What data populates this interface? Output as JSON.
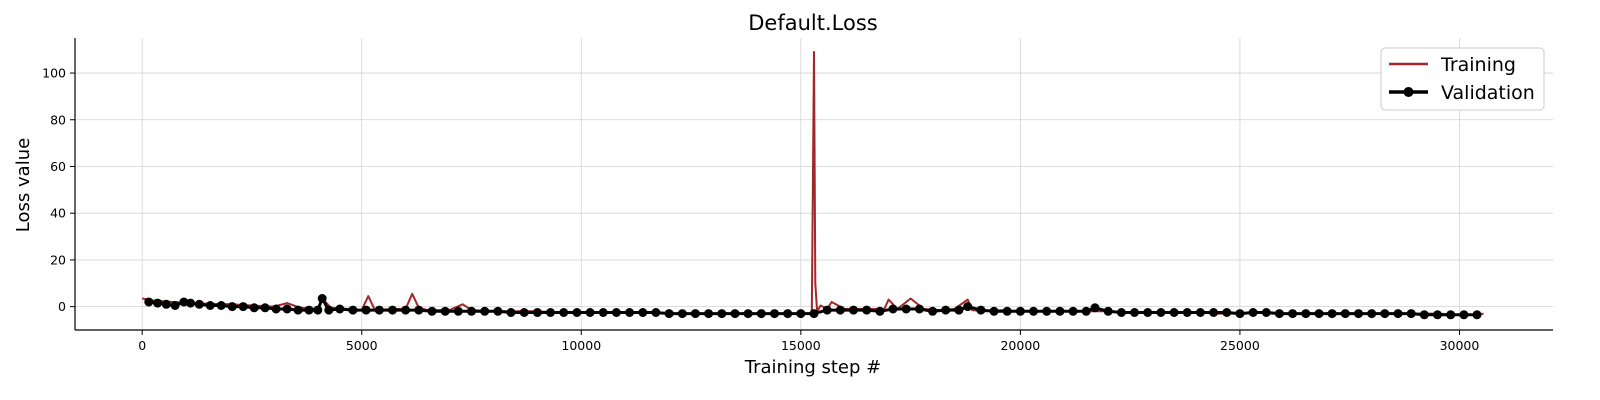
{
  "chart_data": {
    "type": "line",
    "title": "Default.Loss",
    "xlabel": "Training step #",
    "ylabel": "Loss value",
    "xlim": [
      -1530,
      32130
    ],
    "ylim": [
      -10,
      115
    ],
    "xticks": [
      0,
      5000,
      10000,
      15000,
      20000,
      25000,
      30000
    ],
    "yticks": [
      0,
      20,
      40,
      60,
      80,
      100
    ],
    "grid": true,
    "legend_position": "top-right",
    "colors": {
      "training": "#a1272b",
      "validation": "#000000",
      "grid": "#d3d3d3"
    },
    "series": [
      {
        "name": "Training",
        "style": "line",
        "color": "#a1272b",
        "x": [
          0,
          300,
          700,
          1100,
          1500,
          2000,
          2500,
          3000,
          3300,
          3600,
          4000,
          4100,
          4300,
          4700,
          5000,
          5150,
          5300,
          5700,
          6000,
          6150,
          6300,
          6500,
          7000,
          7300,
          7500,
          8000,
          8500,
          9000,
          9500,
          10000,
          10500,
          11000,
          11500,
          12000,
          12500,
          13000,
          13500,
          14000,
          14500,
          15000,
          15250,
          15300,
          15330,
          15370,
          15450,
          15600,
          15700,
          16000,
          16500,
          16900,
          17000,
          17200,
          17500,
          17800,
          18200,
          18500,
          18800,
          18900,
          19200,
          19600,
          20000,
          20300,
          20700,
          21000,
          21500,
          22000,
          22400,
          22800,
          23200,
          23600,
          24000,
          24500,
          25000,
          25500,
          26000,
          26500,
          27000,
          27500,
          28000,
          28500,
          29000,
          29500,
          30000,
          30400,
          30550
        ],
        "y": [
          3.5,
          2.5,
          2.0,
          1.5,
          1.2,
          1.0,
          0.5,
          0.0,
          1.5,
          -0.5,
          -1.0,
          3.5,
          -0.5,
          -1.0,
          -1.5,
          4.5,
          -1.5,
          -1.0,
          -1.0,
          5.5,
          -0.5,
          -1.5,
          -1.5,
          1.0,
          -1.5,
          -2.0,
          -2.0,
          -2.0,
          -2.5,
          -2.5,
          -2.5,
          -2.5,
          -2.5,
          -3.0,
          -3.0,
          -3.0,
          -3.0,
          -3.0,
          -3.0,
          -3.0,
          -3.0,
          109,
          10,
          -2.0,
          0.5,
          -1.0,
          2.0,
          -1.0,
          -1.0,
          -1.0,
          3.0,
          -1.0,
          3.5,
          -1.0,
          -1.5,
          -1.0,
          3.0,
          -1.5,
          -2.0,
          -1.5,
          -2.0,
          -2.0,
          -2.0,
          -2.0,
          -2.0,
          -2.0,
          -2.5,
          -2.5,
          -2.5,
          -2.5,
          -2.5,
          -3.0,
          -3.0,
          -2.5,
          -3.0,
          -3.0,
          -3.0,
          -3.0,
          -3.0,
          -3.0,
          -3.0,
          -3.0,
          -3.5,
          -3.5,
          -3.0
        ]
      },
      {
        "name": "Validation",
        "style": "line-markers",
        "color": "#000000",
        "x": [
          150,
          350,
          550,
          750,
          950,
          1100,
          1300,
          1550,
          1800,
          2050,
          2300,
          2550,
          2800,
          3050,
          3300,
          3550,
          3800,
          4000,
          4100,
          4250,
          4500,
          4800,
          5100,
          5400,
          5700,
          6000,
          6300,
          6600,
          6900,
          7200,
          7500,
          7800,
          8100,
          8400,
          8700,
          9000,
          9300,
          9600,
          9900,
          10200,
          10500,
          10800,
          11100,
          11400,
          11700,
          12000,
          12300,
          12600,
          12900,
          13200,
          13500,
          13800,
          14100,
          14400,
          14700,
          15000,
          15300,
          15600,
          15900,
          16200,
          16500,
          16800,
          17100,
          17400,
          17700,
          18000,
          18300,
          18600,
          18800,
          19100,
          19400,
          19700,
          20000,
          20300,
          20600,
          20900,
          21200,
          21500,
          21700,
          22000,
          22300,
          22600,
          22900,
          23200,
          23500,
          23800,
          24100,
          24400,
          24700,
          25000,
          25300,
          25600,
          25900,
          26200,
          26500,
          26800,
          27100,
          27400,
          27700,
          28000,
          28300,
          28600,
          28900,
          29200,
          29500,
          29800,
          30100,
          30400
        ],
        "y": [
          2.0,
          1.5,
          1.0,
          0.5,
          2.0,
          1.5,
          1.0,
          0.5,
          0.5,
          0.0,
          0.0,
          -0.5,
          -0.5,
          -1.0,
          -1.0,
          -1.5,
          -1.5,
          -1.5,
          3.5,
          -1.5,
          -1.0,
          -1.5,
          -1.5,
          -1.5,
          -1.5,
          -1.5,
          -1.5,
          -2.0,
          -2.0,
          -2.0,
          -2.0,
          -2.0,
          -2.0,
          -2.5,
          -2.5,
          -2.5,
          -2.5,
          -2.5,
          -2.5,
          -2.5,
          -2.5,
          -2.5,
          -2.5,
          -2.5,
          -2.5,
          -3.0,
          -3.0,
          -3.0,
          -3.0,
          -3.0,
          -3.0,
          -3.0,
          -3.0,
          -3.0,
          -3.0,
          -3.0,
          -3.0,
          -1.5,
          -1.5,
          -1.5,
          -1.5,
          -2.0,
          -1.0,
          -1.0,
          -1.0,
          -2.0,
          -1.5,
          -1.5,
          0.0,
          -1.5,
          -2.0,
          -2.0,
          -2.0,
          -2.0,
          -2.0,
          -2.0,
          -2.0,
          -2.0,
          -0.5,
          -2.0,
          -2.5,
          -2.5,
          -2.5,
          -2.5,
          -2.5,
          -2.5,
          -2.5,
          -2.5,
          -2.5,
          -3.0,
          -2.5,
          -2.5,
          -3.0,
          -3.0,
          -3.0,
          -3.0,
          -3.0,
          -3.0,
          -3.0,
          -3.0,
          -3.0,
          -3.0,
          -3.0,
          -3.5,
          -3.5,
          -3.5,
          -3.5,
          -3.5
        ]
      }
    ]
  }
}
